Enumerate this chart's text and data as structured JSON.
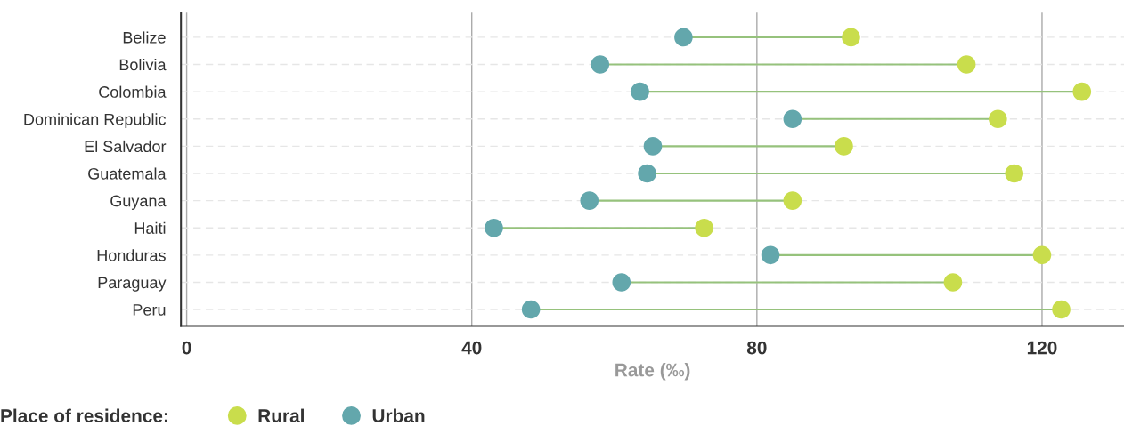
{
  "chart_data": {
    "type": "scatter",
    "orientation": "horizontal",
    "xlabel": "Rate (‰)",
    "legend_title": "Place of residence:",
    "legend": "bottom",
    "grid": true,
    "marker": "circle",
    "categories": [
      "Belize",
      "Bolivia",
      "Colombia",
      "Dominican Republic",
      "El Salvador",
      "Guatemala",
      "Guyana",
      "Haiti",
      "Honduras",
      "Paraguay",
      "Peru"
    ],
    "xlim": [
      -0.8,
      131.5
    ],
    "xticks": [
      0,
      40,
      80,
      120
    ],
    "series": [
      {
        "name": "Rural",
        "color": "#c9dd4c",
        "values": [
          93.2,
          109.4,
          125.6,
          113.8,
          92.2,
          116.1,
          85.0,
          72.6,
          120.0,
          107.5,
          122.7
        ]
      },
      {
        "name": "Urban",
        "color": "#63a7ac",
        "values": [
          69.7,
          58.0,
          63.6,
          85.0,
          65.4,
          64.6,
          56.5,
          43.1,
          81.9,
          61.0,
          48.3
        ]
      }
    ]
  }
}
